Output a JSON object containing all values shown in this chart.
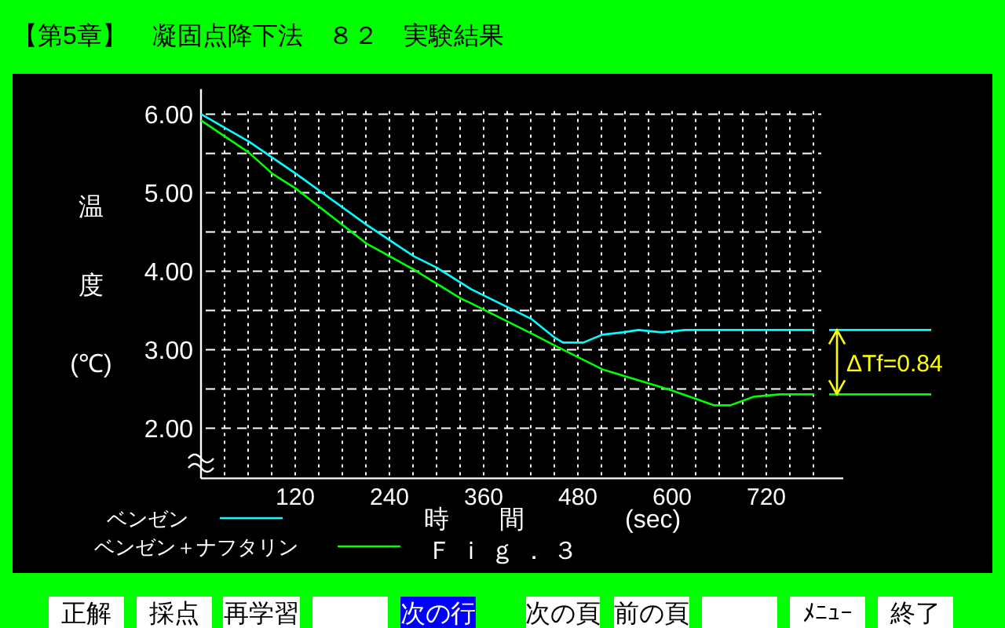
{
  "chart_data": {
    "type": "line",
    "title": "【第5章】　凝固点降下法　８２　実験結果",
    "ylabel": "温度(℃)",
    "xlabel": "時　　間　　　　(sec)",
    "xlim": [
      0,
      818
    ],
    "ylim": [
      1.36,
      6.32
    ],
    "xticks": [
      {
        "value": 30,
        "label": null
      },
      {
        "value": 60,
        "label": null
      },
      {
        "value": 90,
        "label": null
      },
      120,
      {
        "value": 150,
        "label": null
      },
      {
        "value": 180,
        "label": null
      },
      {
        "value": 210,
        "label": null
      },
      240,
      {
        "value": 270,
        "label": null
      },
      {
        "value": 300,
        "label": null
      },
      {
        "value": 330,
        "label": null
      },
      360,
      {
        "value": 390,
        "label": null
      },
      {
        "value": 420,
        "label": null
      },
      {
        "value": 450,
        "label": null
      },
      480,
      {
        "value": 510,
        "label": null
      },
      {
        "value": 540,
        "label": null
      },
      {
        "value": 570,
        "label": null
      },
      600,
      {
        "value": 630,
        "label": null
      },
      {
        "value": 660,
        "label": null
      },
      {
        "value": 690,
        "label": null
      },
      720,
      {
        "value": 750,
        "label": null
      },
      {
        "value": 780,
        "label": null
      }
    ],
    "yticks": [
      {
        "value": 2,
        "label": "2.00"
      },
      {
        "value": 2.5,
        "label": null
      },
      {
        "value": 3,
        "label": "3.00"
      },
      {
        "value": 3.5,
        "label": null
      },
      {
        "value": 4,
        "label": "4.00"
      },
      {
        "value": 4.5,
        "label": null
      },
      {
        "value": 5,
        "label": "5.00"
      },
      {
        "value": 5.5,
        "label": null
      },
      {
        "value": 6,
        "label": "6.00"
      }
    ],
    "grid": true,
    "legend": "bottom left",
    "series": [
      {
        "name": "ベンゼン",
        "color": "#00ffff",
        "x": [
          0,
          61,
          121,
          211,
          271,
          301,
          344,
          421,
          451,
          461,
          487,
          511,
          537,
          557,
          587,
          617,
          781
        ],
        "values": [
          6.0,
          5.65,
          5.24,
          4.59,
          4.19,
          4.04,
          3.77,
          3.39,
          3.15,
          3.09,
          3.09,
          3.19,
          3.22,
          3.25,
          3.22,
          3.25,
          3.25
        ]
      },
      {
        "name": "ベンゼン＋ナフタリン",
        "color": "#00ff00",
        "x": [
          0,
          61,
          91,
          121,
          211,
          271,
          331,
          344,
          424,
          451,
          511,
          597,
          654,
          674,
          704,
          737,
          781
        ],
        "values": [
          5.92,
          5.51,
          5.24,
          5.05,
          4.35,
          4.02,
          3.65,
          3.59,
          3.19,
          3.05,
          2.75,
          2.49,
          2.29,
          2.29,
          2.4,
          2.43,
          2.43
        ]
      }
    ],
    "annotations": [
      "Ｆｉｇ．３",
      "ΔTf=0.84",
      "正解",
      "採点",
      "再学習",
      "次の行",
      "次の頁",
      "前の頁",
      "ﾒﾆｭｰ",
      "終了"
    ]
  }
}
